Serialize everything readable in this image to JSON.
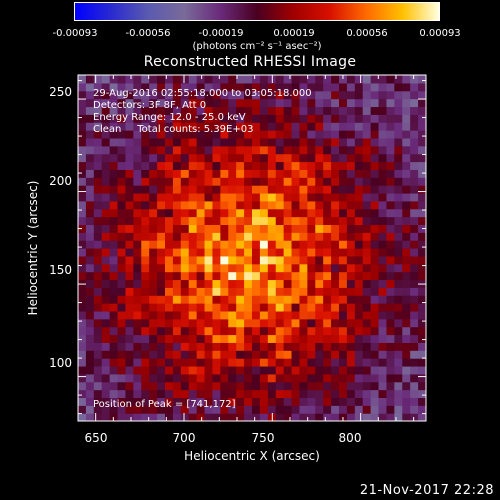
{
  "colorbar": {
    "ticks": [
      "-0.00093",
      "-0.00056",
      "-0.00019",
      "0.00019",
      "0.00056",
      "0.00093"
    ],
    "unit_label": "(photons cm⁻² s⁻¹ asec⁻²)"
  },
  "title": "Reconstructed RHESSI Image",
  "info": {
    "line1": "29-Aug-2016 02:55:18.000 to 03:05:18.000",
    "line2": "Detectors: 3F 8F, Att 0",
    "line3": "Energy Range: 12.0 - 25.0 keV",
    "line4": "Clean     Total counts: 5.39E+03",
    "peak": "Position of Peak = [741,172]"
  },
  "timestamp": "21-Nov-2017 22:28",
  "chart_data": {
    "type": "heatmap",
    "title": "Reconstructed RHESSI Image",
    "xlabel": "Heliocentric X (arcsec)",
    "ylabel": "Heliocentric Y (arcsec)",
    "xlim": [
      640,
      837
    ],
    "ylim": [
      76,
      263
    ],
    "xticks": [
      650,
      700,
      750,
      800
    ],
    "yticks": [
      100,
      150,
      200,
      250
    ],
    "colorbar_range": [
      -0.00093,
      0.00093
    ],
    "peak": [
      741,
      172
    ],
    "source_center": [
      735,
      165
    ],
    "source_radius_arcsec": 55
  }
}
